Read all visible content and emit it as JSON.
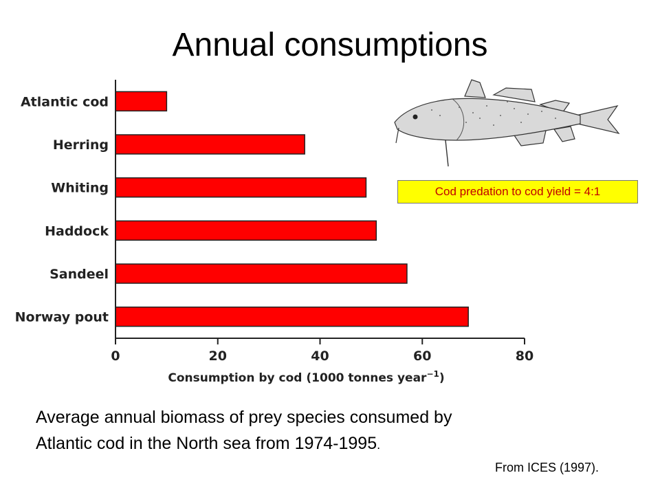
{
  "slide": {
    "title": "Annual consumptions",
    "caption_line1": "Average annual biomass of prey species consumed by",
    "caption_line2": "Atlantic cod in the North sea from 1974-1995",
    "caption_end": ".",
    "source": "From ICES (1997).",
    "callout": "Cod predation to cod yield = 4:1",
    "image": "atlantic-cod-illustration"
  },
  "colors": {
    "bar": "#ff0000",
    "callout_bg": "#ffff00",
    "callout_text": "#c00000"
  },
  "chart_data": {
    "type": "bar",
    "orientation": "horizontal",
    "categories": [
      "Atlantic cod",
      "Herring",
      "Whiting",
      "Haddock",
      "Sandeel",
      "Norway pout"
    ],
    "values": [
      10,
      37,
      49,
      51,
      57,
      69
    ],
    "xlabel": "Consumption by cod (1000 tonnes year",
    "xlabel_exp": "−1",
    "xlabel_end": ")",
    "xlim": [
      0,
      80
    ],
    "xticks": [
      0,
      20,
      40,
      60,
      80
    ],
    "grid": false
  }
}
